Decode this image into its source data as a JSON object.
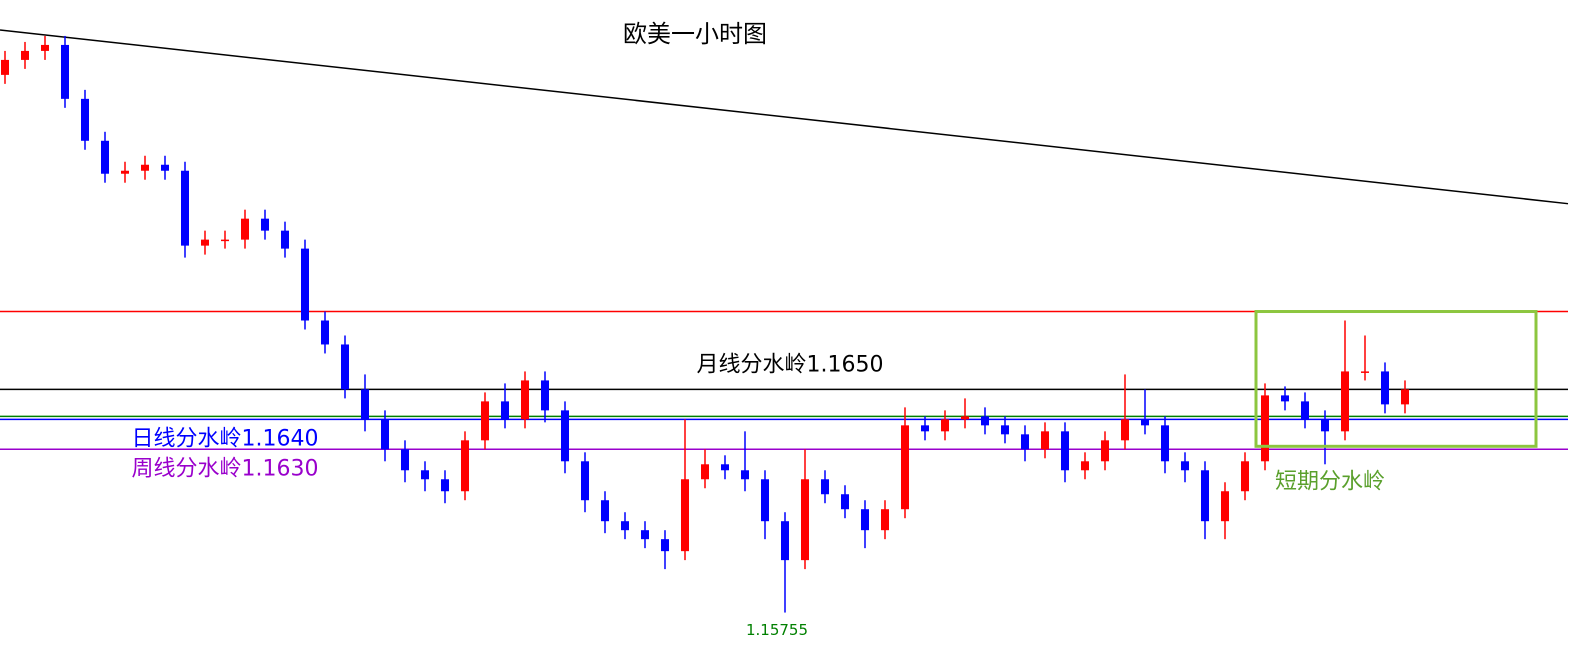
{
  "chart_data": {
    "type": "candlestick",
    "title": "欧美一小时图",
    "ylim": [
      1.1564,
      1.178
    ],
    "up_color": "#ff0000",
    "down_color": "#0000ff",
    "trendline": {
      "start": 1.177,
      "end": 1.1712,
      "color": "#000000"
    },
    "levels": [
      {
        "value": 1.1676,
        "color": "#ff0000"
      },
      {
        "value": 1.165,
        "label": "月线分水岭1.1650",
        "color": "#000000"
      },
      {
        "value": 1.1641,
        "color": "#008000"
      },
      {
        "value": 1.164,
        "label": "日线分水岭1.1640",
        "color": "#0000ff"
      },
      {
        "value": 1.163,
        "label": "周线分水岭1.1630",
        "color": "#9900cc"
      }
    ],
    "zone": {
      "label": "短期分水岭",
      "high": 1.1676,
      "low": 1.1631,
      "color": "#8cc63f"
    },
    "low_mark": 1.15755,
    "candles": [
      [
        1.1755,
        1.1763,
        1.1752,
        1.176
      ],
      [
        1.176,
        1.1766,
        1.1757,
        1.1763
      ],
      [
        1.1763,
        1.1768,
        1.176,
        1.1765
      ],
      [
        1.1765,
        1.1768,
        1.1744,
        1.1747
      ],
      [
        1.1747,
        1.175,
        1.173,
        1.1733
      ],
      [
        1.1733,
        1.1736,
        1.1719,
        1.1722
      ],
      [
        1.1722,
        1.1726,
        1.1719,
        1.1723
      ],
      [
        1.1723,
        1.1728,
        1.172,
        1.1725
      ],
      [
        1.1725,
        1.1728,
        1.172,
        1.1723
      ],
      [
        1.1723,
        1.1726,
        1.1694,
        1.1698
      ],
      [
        1.1698,
        1.1703,
        1.1695,
        1.17
      ],
      [
        1.17,
        1.1703,
        1.1697,
        1.17
      ],
      [
        1.17,
        1.171,
        1.1697,
        1.1707
      ],
      [
        1.1707,
        1.171,
        1.17,
        1.1703
      ],
      [
        1.1703,
        1.1706,
        1.1694,
        1.1697
      ],
      [
        1.1697,
        1.17,
        1.167,
        1.1673
      ],
      [
        1.1673,
        1.1676,
        1.1662,
        1.1665
      ],
      [
        1.1665,
        1.1668,
        1.1647,
        1.165
      ],
      [
        1.165,
        1.1655,
        1.1636,
        1.164
      ],
      [
        1.164,
        1.1643,
        1.1626,
        1.163
      ],
      [
        1.163,
        1.1633,
        1.1619,
        1.1623
      ],
      [
        1.1623,
        1.1626,
        1.1616,
        1.162
      ],
      [
        1.162,
        1.1623,
        1.1612,
        1.1616
      ],
      [
        1.1616,
        1.1636,
        1.1613,
        1.1633
      ],
      [
        1.1633,
        1.1649,
        1.163,
        1.1646
      ],
      [
        1.1646,
        1.1652,
        1.1637,
        1.164
      ],
      [
        1.164,
        1.1656,
        1.1637,
        1.1653
      ],
      [
        1.1653,
        1.1656,
        1.1639,
        1.1643
      ],
      [
        1.1643,
        1.1646,
        1.1622,
        1.1626
      ],
      [
        1.1626,
        1.1629,
        1.1609,
        1.1613
      ],
      [
        1.1613,
        1.1616,
        1.1602,
        1.1606
      ],
      [
        1.1606,
        1.1609,
        1.16,
        1.1603
      ],
      [
        1.1603,
        1.1606,
        1.1597,
        1.16
      ],
      [
        1.16,
        1.1603,
        1.159,
        1.1596
      ],
      [
        1.1596,
        1.164,
        1.1593,
        1.162
      ],
      [
        1.162,
        1.163,
        1.1617,
        1.1625
      ],
      [
        1.1625,
        1.1628,
        1.162,
        1.1623
      ],
      [
        1.1623,
        1.1636,
        1.1616,
        1.162
      ],
      [
        1.162,
        1.1623,
        1.16,
        1.1606
      ],
      [
        1.1606,
        1.1609,
        1.15755,
        1.1593
      ],
      [
        1.1593,
        1.163,
        1.159,
        1.162
      ],
      [
        1.162,
        1.1623,
        1.1612,
        1.1615
      ],
      [
        1.1615,
        1.1618,
        1.1607,
        1.161
      ],
      [
        1.161,
        1.1613,
        1.1597,
        1.1603
      ],
      [
        1.1603,
        1.1613,
        1.16,
        1.161
      ],
      [
        1.161,
        1.1644,
        1.1607,
        1.1638
      ],
      [
        1.1638,
        1.1641,
        1.1633,
        1.1636
      ],
      [
        1.1636,
        1.1643,
        1.1633,
        1.164
      ],
      [
        1.164,
        1.1647,
        1.1637,
        1.1641
      ],
      [
        1.1641,
        1.1644,
        1.1635,
        1.1638
      ],
      [
        1.1638,
        1.1641,
        1.1632,
        1.1635
      ],
      [
        1.1635,
        1.1638,
        1.1626,
        1.163
      ],
      [
        1.163,
        1.1639,
        1.1627,
        1.1636
      ],
      [
        1.1636,
        1.1639,
        1.1619,
        1.1623
      ],
      [
        1.1623,
        1.1629,
        1.162,
        1.1626
      ],
      [
        1.1626,
        1.1636,
        1.1623,
        1.1633
      ],
      [
        1.1633,
        1.1655,
        1.163,
        1.164
      ],
      [
        1.164,
        1.165,
        1.1635,
        1.1638
      ],
      [
        1.1638,
        1.1641,
        1.1622,
        1.1626
      ],
      [
        1.1626,
        1.1629,
        1.1619,
        1.1623
      ],
      [
        1.1623,
        1.1626,
        1.16,
        1.1606
      ],
      [
        1.1606,
        1.1619,
        1.16,
        1.1616
      ],
      [
        1.1616,
        1.1629,
        1.1613,
        1.1626
      ],
      [
        1.1626,
        1.1652,
        1.1623,
        1.1648
      ],
      [
        1.1648,
        1.1651,
        1.1643,
        1.1646
      ],
      [
        1.1646,
        1.1649,
        1.1637,
        1.164
      ],
      [
        1.164,
        1.1643,
        1.1625,
        1.1636
      ],
      [
        1.1636,
        1.1673,
        1.1633,
        1.1656
      ],
      [
        1.1656,
        1.1668,
        1.1653,
        1.1656
      ],
      [
        1.1656,
        1.1659,
        1.1642,
        1.1645
      ],
      [
        1.1645,
        1.1653,
        1.1642,
        1.165
      ]
    ]
  }
}
